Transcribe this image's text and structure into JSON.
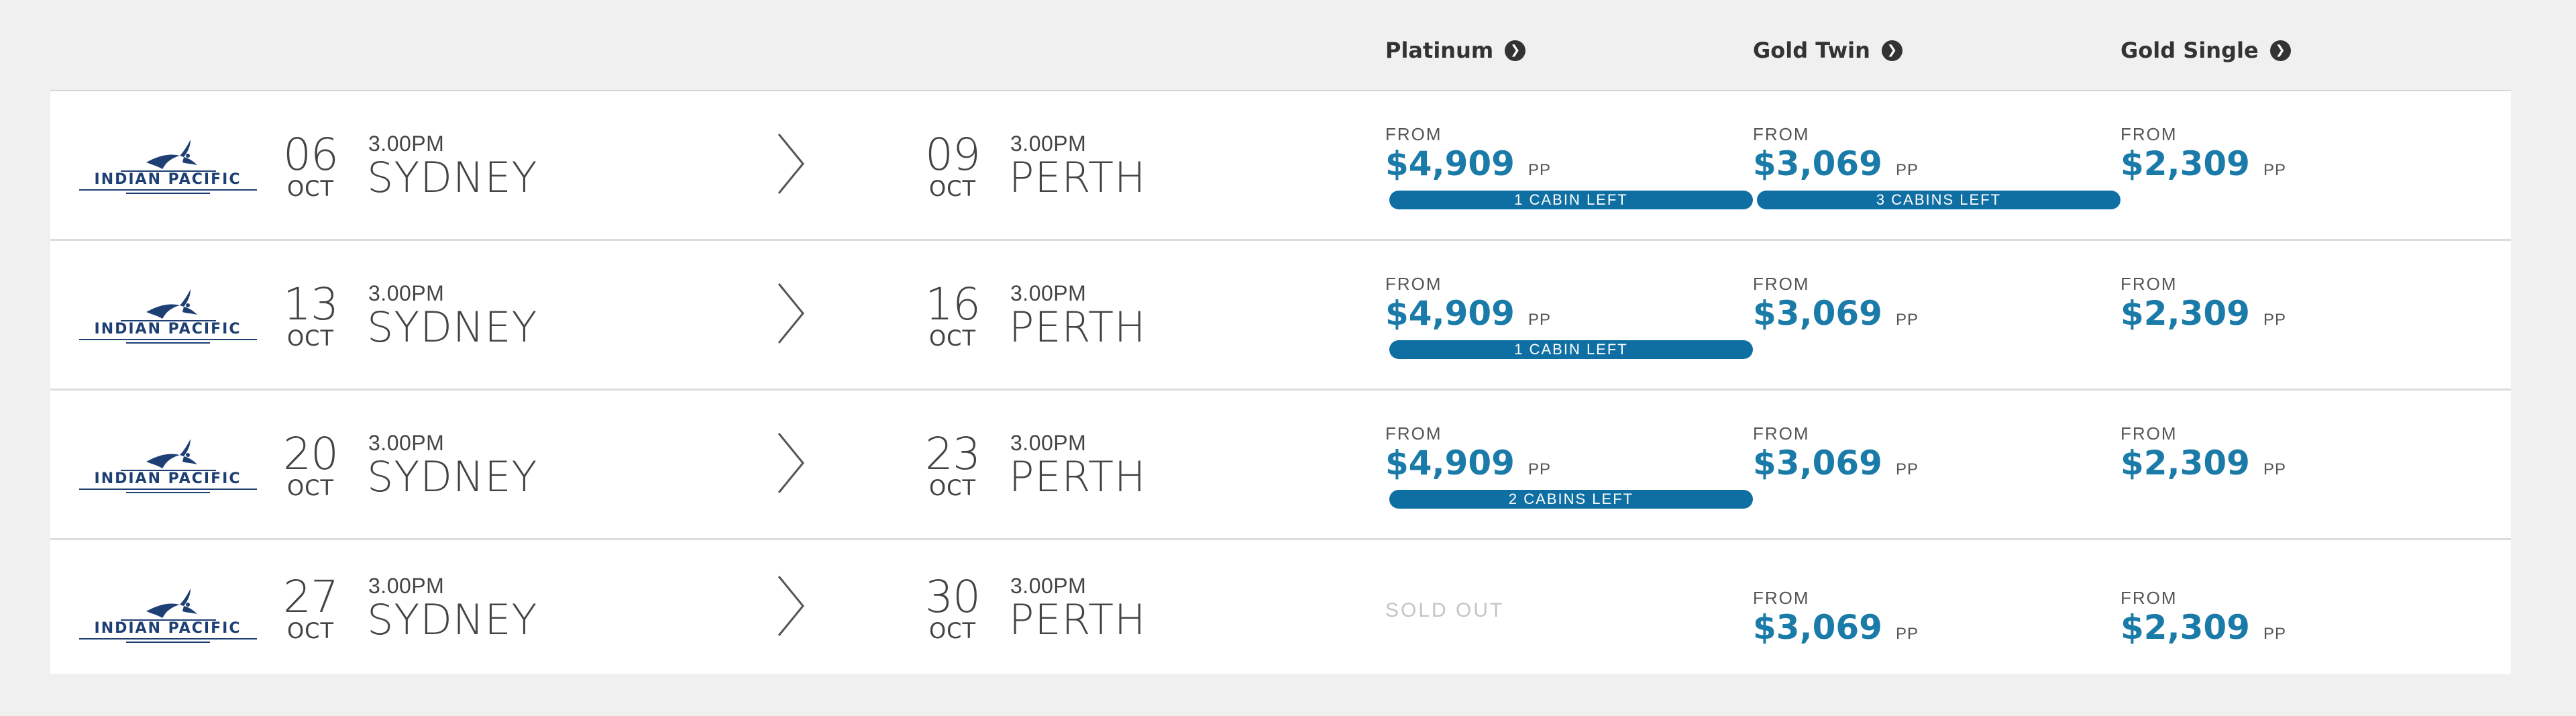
{
  "tiers": [
    {
      "label": "Platinum",
      "icon": "chevron-right-circle-icon"
    },
    {
      "label": "Gold Twin",
      "icon": "chevron-right-circle-icon"
    },
    {
      "label": "Gold Single",
      "icon": "chevron-right-circle-icon"
    }
  ],
  "brand": {
    "name": "INDIAN PACIFIC",
    "logo_icon": "eagle-icon",
    "color": "#1e3f73"
  },
  "colors": {
    "price": "#1a7aa8",
    "badge": "#0f6fa3",
    "sold_out": "#c4c4c4"
  },
  "departures": [
    {
      "dep_day": "06",
      "dep_month": "OCT",
      "dep_time": "3.00PM",
      "dep_city": "SYDNEY",
      "arr_day": "09",
      "arr_month": "OCT",
      "arr_time": "3.00PM",
      "arr_city": "PERTH",
      "prices": [
        {
          "from": "FROM",
          "amount": "$4,909",
          "unit": "PP",
          "badge": "1 CABIN LEFT"
        },
        {
          "from": "FROM",
          "amount": "$3,069",
          "unit": "PP",
          "badge": "3 CABINS LEFT"
        },
        {
          "from": "FROM",
          "amount": "$2,309",
          "unit": "PP",
          "badge": ""
        }
      ]
    },
    {
      "dep_day": "13",
      "dep_month": "OCT",
      "dep_time": "3.00PM",
      "dep_city": "SYDNEY",
      "arr_day": "16",
      "arr_month": "OCT",
      "arr_time": "3.00PM",
      "arr_city": "PERTH",
      "prices": [
        {
          "from": "FROM",
          "amount": "$4,909",
          "unit": "PP",
          "badge": "1 CABIN LEFT"
        },
        {
          "from": "FROM",
          "amount": "$3,069",
          "unit": "PP",
          "badge": ""
        },
        {
          "from": "FROM",
          "amount": "$2,309",
          "unit": "PP",
          "badge": ""
        }
      ]
    },
    {
      "dep_day": "20",
      "dep_month": "OCT",
      "dep_time": "3.00PM",
      "dep_city": "SYDNEY",
      "arr_day": "23",
      "arr_month": "OCT",
      "arr_time": "3.00PM",
      "arr_city": "PERTH",
      "prices": [
        {
          "from": "FROM",
          "amount": "$4,909",
          "unit": "PP",
          "badge": "2 CABINS LEFT"
        },
        {
          "from": "FROM",
          "amount": "$3,069",
          "unit": "PP",
          "badge": ""
        },
        {
          "from": "FROM",
          "amount": "$2,309",
          "unit": "PP",
          "badge": ""
        }
      ]
    },
    {
      "dep_day": "27",
      "dep_month": "OCT",
      "dep_time": "3.00PM",
      "dep_city": "SYDNEY",
      "arr_day": "30",
      "arr_month": "OCT",
      "arr_time": "3.00PM",
      "arr_city": "PERTH",
      "prices": [
        {
          "sold_out": "SOLD OUT"
        },
        {
          "from": "FROM",
          "amount": "$3,069",
          "unit": "PP",
          "badge": ""
        },
        {
          "from": "FROM",
          "amount": "$2,309",
          "unit": "PP",
          "badge": ""
        }
      ]
    }
  ]
}
